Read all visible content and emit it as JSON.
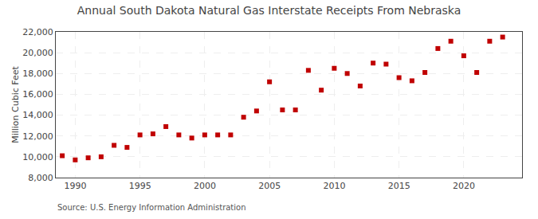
{
  "chart_data": {
    "type": "scatter",
    "title": "Annual South Dakota Natural Gas Interstate Receipts From Nebraska",
    "ylabel": "Million Cubic Feet",
    "annotations": [
      "Source: U.S. Energy Information Administration"
    ],
    "x": [
      1989,
      1990,
      1991,
      1992,
      1993,
      1994,
      1995,
      1996,
      1997,
      1998,
      1999,
      2000,
      2001,
      2002,
      2003,
      2004,
      2005,
      2006,
      2007,
      2008,
      2009,
      2010,
      2011,
      2012,
      2013,
      2014,
      2015,
      2016,
      2017,
      2018,
      2019,
      2020,
      2021,
      2022,
      2023
    ],
    "values": [
      10100,
      9700,
      9900,
      10000,
      11100,
      10900,
      12100,
      12200,
      12900,
      12100,
      11800,
      12100,
      12100,
      12100,
      13800,
      14400,
      17200,
      14500,
      14500,
      18300,
      16400,
      18500,
      18000,
      16800,
      19000,
      18900,
      17600,
      17300,
      18100,
      20400,
      21100,
      19700,
      18100,
      21100,
      21500
    ],
    "color": "#c00000",
    "marker": "square",
    "grid": true,
    "xlim": [
      1988.5,
      2024.5
    ],
    "xticks": [
      1990,
      1995,
      2000,
      2005,
      2010,
      2015,
      2020
    ],
    "ylim": [
      8000,
      22000
    ],
    "yticks": [
      {
        "value": 8000,
        "label": "8,000"
      },
      {
        "value": 10000,
        "label": "10,000"
      },
      {
        "value": 12000,
        "label": "12,000"
      },
      {
        "value": 14000,
        "label": "14,000"
      },
      {
        "value": 16000,
        "label": "16,000"
      },
      {
        "value": 18000,
        "label": "18,000"
      },
      {
        "value": 20000,
        "label": "20,000"
      },
      {
        "value": 22000,
        "label": "22,000"
      }
    ]
  }
}
